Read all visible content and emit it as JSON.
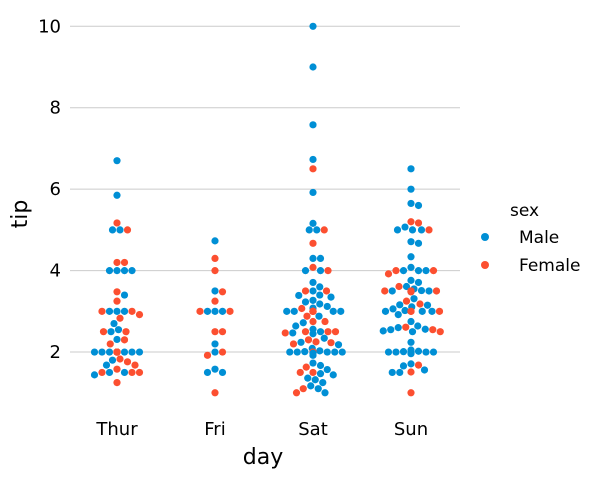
{
  "chart_data": {
    "type": "scatter",
    "subtype": "swarm",
    "title": "",
    "xlabel": "day",
    "ylabel": "tip",
    "categories": [
      "Thur",
      "Fri",
      "Sat",
      "Sun"
    ],
    "ylim": [
      0.7,
      10.4
    ],
    "yticks": [
      2,
      4,
      6,
      8,
      10
    ],
    "grid": "horizontal",
    "legend": {
      "title": "sex",
      "placement": "right",
      "entries": [
        {
          "name": "Male",
          "color": "#008fd5"
        },
        {
          "name": "Female",
          "color": "#fc4f30"
        }
      ]
    },
    "series": [
      {
        "name": "Male",
        "color": "#008fd5",
        "values": {
          "Thur": [
            6.7,
            5.85,
            5.0,
            5.0,
            4.0,
            4.0,
            4.0,
            4.0,
            3.4,
            3.0,
            3.0,
            3.0,
            2.7,
            2.55,
            2.5,
            2.31,
            2.0,
            2.0,
            2.0,
            2.0,
            2.0,
            2.0,
            2.0,
            2.0,
            2.0,
            2.0,
            2.0,
            1.8,
            1.68,
            1.5,
            1.5,
            1.44
          ],
          "Fri": [
            4.73,
            3.5,
            3.0,
            3.0,
            3.0,
            2.2,
            2.0,
            1.58,
            1.5,
            1.5
          ],
          "Sat": [
            10.0,
            9.0,
            7.58,
            6.73,
            5.92,
            5.16,
            5.0,
            5.0,
            4.3,
            4.3,
            4.0,
            4.0,
            3.71,
            3.6,
            3.5,
            3.4,
            3.39,
            3.35,
            3.27,
            3.23,
            3.18,
            3.12,
            3.08,
            3.0,
            3.0,
            3.0,
            3.0,
            2.88,
            2.72,
            2.64,
            2.56,
            2.5,
            2.47,
            2.45,
            2.34,
            2.24,
            2.18,
            2.09,
            2.03,
            2.01,
            2.0,
            2.0,
            2.0,
            2.0,
            2.0,
            2.0,
            2.0,
            2.0,
            2.0,
            2.0,
            1.97,
            1.92,
            1.73,
            1.67,
            1.57,
            1.47,
            1.44,
            1.36,
            1.32,
            1.25,
            1.17,
            1.1,
            1.0
          ],
          "Sun": [
            6.5,
            6.0,
            5.65,
            5.6,
            5.07,
            5.0,
            5.0,
            5.0,
            4.71,
            4.67,
            4.34,
            4.08,
            4.0,
            4.0,
            4.0,
            3.76,
            3.71,
            3.61,
            3.55,
            3.51,
            3.5,
            3.5,
            3.48,
            3.31,
            3.16,
            3.15,
            3.11,
            3.06,
            3.02,
            3.0,
            3.0,
            3.0,
            2.92,
            2.75,
            2.64,
            2.6,
            2.56,
            2.55,
            2.52,
            2.5,
            2.24,
            2.05,
            2.02,
            2.01,
            2.0,
            2.0,
            2.0,
            2.0,
            2.0,
            2.0,
            2.0,
            2.0,
            2.0,
            1.96,
            1.71,
            1.66,
            1.56,
            1.5,
            1.5
          ]
        }
      },
      {
        "name": "Female",
        "color": "#fc4f30",
        "values": {
          "Thur": [
            5.17,
            5.0,
            4.2,
            4.2,
            3.48,
            3.25,
            3.0,
            3.0,
            2.92,
            2.83,
            2.5,
            2.5,
            2.3,
            2.2,
            2.0,
            2.0,
            2.0,
            2.0,
            2.0,
            2.0,
            2.0,
            2.0,
            2.0,
            2.0,
            2.0,
            2.0,
            1.83,
            1.76,
            1.68,
            1.58,
            1.5,
            1.5,
            1.5,
            1.25
          ],
          "Fri": [
            4.3,
            4.0,
            3.48,
            3.25,
            3.0,
            3.0,
            2.5,
            2.5,
            2.0,
            1.92,
            1.0
          ],
          "Sat": [
            6.5,
            5.0,
            4.67,
            4.08,
            4.0,
            3.5,
            3.5,
            3.07,
            3.0,
            3.0,
            3.0,
            3.0,
            3.0,
            3.0,
            3.0,
            2.88,
            2.75,
            2.75,
            2.5,
            2.5,
            2.5,
            2.47,
            2.3,
            2.25,
            2.23,
            2.2,
            2.0,
            2.0,
            1.63,
            1.5,
            1.5,
            1.1,
            1.0
          ],
          "Sun": [
            5.2,
            5.17,
            5.0,
            4.0,
            4.0,
            3.92,
            3.61,
            3.5,
            3.5,
            3.5,
            3.5,
            3.5,
            3.48,
            3.25,
            3.18,
            3.0,
            3.0,
            3.0,
            2.61,
            2.55,
            2.5,
            1.68,
            1.51,
            1.0
          ]
        }
      }
    ]
  }
}
